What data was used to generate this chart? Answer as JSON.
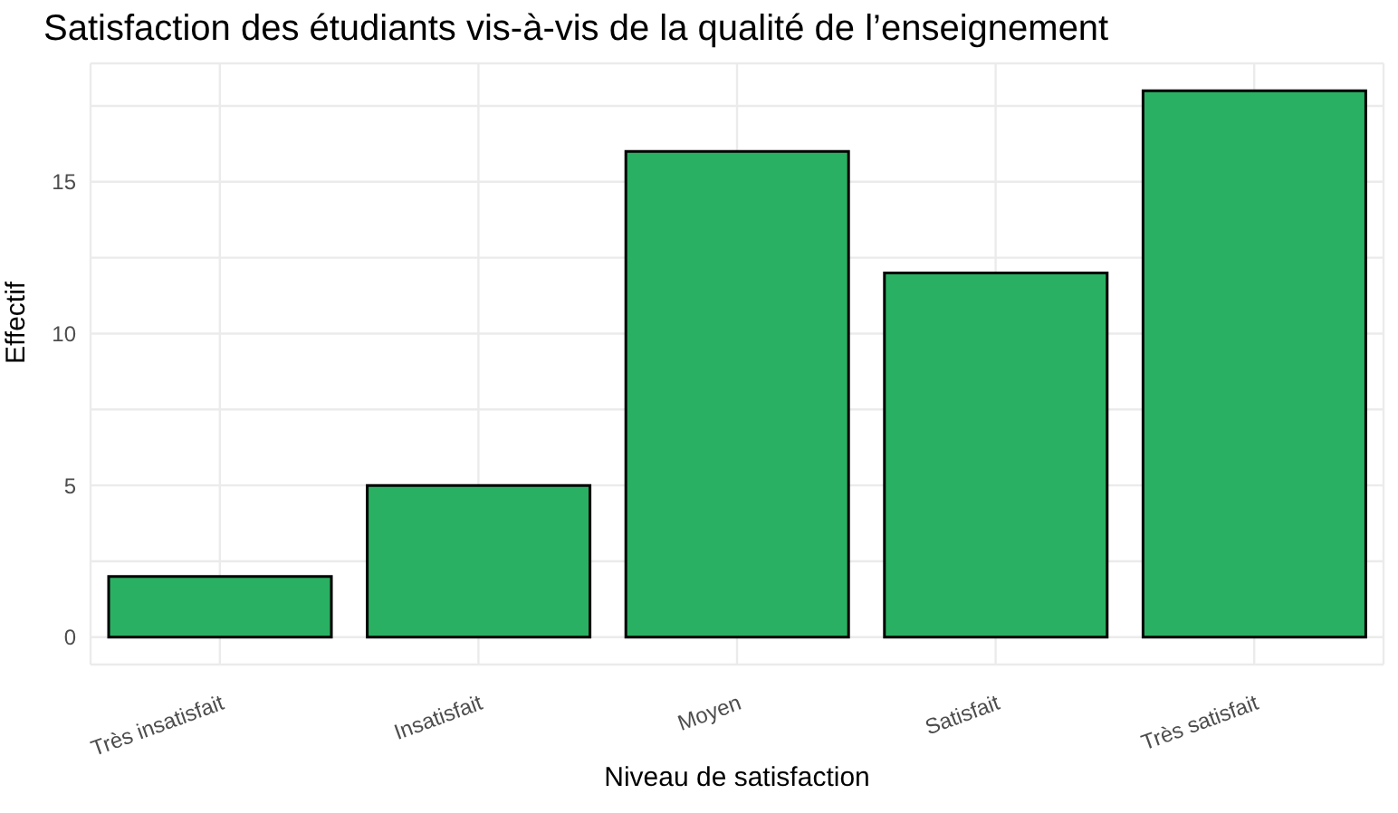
{
  "chart_data": {
    "type": "bar",
    "title": "Satisfaction des étudiants vis-à-vis de la qualité de l’enseignement",
    "xlabel": "Niveau de satisfaction",
    "ylabel": "Effectif",
    "categories": [
      "Très insatisfait",
      "Insatisfait",
      "Moyen",
      "Satisfait",
      "Très satisfait"
    ],
    "values": [
      2,
      5,
      16,
      12,
      18
    ],
    "color": "#2ab062",
    "ylim": [
      -0.9,
      18.9
    ],
    "yticks": [
      0,
      {
        "value": 2.5,
        "label": null
      },
      5,
      {
        "value": 7.5,
        "label": null
      },
      10,
      {
        "value": 12.5,
        "label": null
      },
      15,
      {
        "value": 17.5,
        "label": null
      }
    ],
    "grid": true
  }
}
